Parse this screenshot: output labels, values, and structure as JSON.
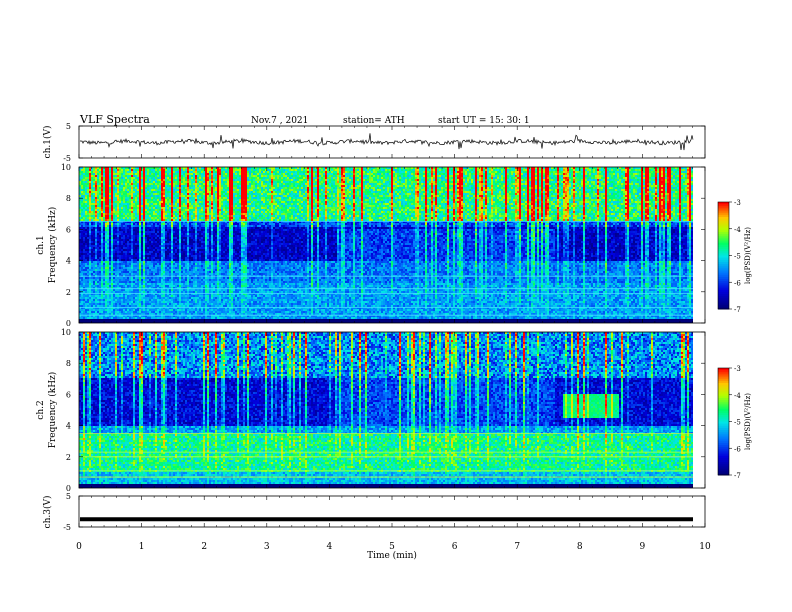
{
  "header": {
    "title": "VLF Spectra",
    "date": "Nov.7 , 2021",
    "station": "station= ATH",
    "start_ut": "start UT = 15: 30: 1"
  },
  "colors": {
    "low": "#00007f",
    "mid": "#00c0ff",
    "green": "#00ff60",
    "yellow": "#ffff00",
    "high": "#ff0000",
    "axis": "#000000"
  },
  "chart_data": [
    {
      "id": "ch1-waveform",
      "type": "line",
      "ylabel": "ch.1(V)",
      "ylim": [
        -5,
        5
      ],
      "yticks": [
        "5",
        "-5"
      ],
      "xlim": [
        0,
        10
      ],
      "series": [
        {
          "values_summary": "noisy waveform near 0 V with spikes"
        }
      ]
    },
    {
      "id": "ch1-spectrogram",
      "type": "heatmap",
      "ylabel": "ch.1",
      "ylabel2": "Frequency (kHz)",
      "ylim": [
        0,
        10
      ],
      "yticks": [
        "0",
        "2",
        "4",
        "6",
        "8",
        "10"
      ],
      "xlim": [
        0,
        10
      ],
      "colorbar": {
        "label": "log(PSD)(V²/Hz)",
        "range": [
          -7,
          -3
        ],
        "ticks": [
          "-3",
          "-4",
          "-5",
          "-6",
          "-7"
        ]
      },
      "features": {
        "bright_band_above_khz": 6.5,
        "quiet_band_khz": [
          4,
          6
        ],
        "steady_lines_khz": [
          0.5,
          1.0,
          1.9,
          2.2,
          3.0,
          6.5
        ]
      }
    },
    {
      "id": "ch2-spectrogram",
      "type": "heatmap",
      "ylabel": "ch.2",
      "ylabel2": "Frequency (kHz)",
      "ylim": [
        0,
        10
      ],
      "yticks": [
        "0",
        "2",
        "4",
        "6",
        "8",
        "10"
      ],
      "xlim": [
        0,
        10
      ],
      "colorbar": {
        "label": "log(PSD)(V²/Hz)",
        "range": [
          -7,
          -3
        ],
        "ticks": [
          "-3",
          "-4",
          "-5",
          "-6",
          "-7"
        ]
      },
      "features": {
        "strong_band_khz": [
          1.0,
          3.5
        ],
        "burst_interval_min": [
          7.7,
          8.6
        ],
        "burst_band_khz": [
          4.5,
          6.0
        ]
      }
    },
    {
      "id": "ch3-waveform",
      "type": "line",
      "ylabel": "ch.3(V)",
      "ylim": [
        -5,
        5
      ],
      "yticks": [
        "5",
        "-5"
      ],
      "xlim": [
        0,
        10
      ],
      "xlabel": "Time (min)",
      "xticks": [
        "0",
        "1",
        "2",
        "3",
        "4",
        "5",
        "6",
        "7",
        "8",
        "9",
        "10"
      ],
      "series": [
        {
          "values_summary": "thick flat trace near -2.5 V"
        }
      ]
    }
  ]
}
